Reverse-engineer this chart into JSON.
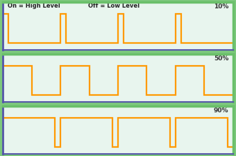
{
  "panels": [
    {
      "label": "10%",
      "duty": 0.1,
      "show_legend": true
    },
    {
      "label": "50%",
      "duty": 0.5,
      "show_legend": false
    },
    {
      "label": "90%",
      "duty": 0.9,
      "show_legend": false
    }
  ],
  "legend_on": "On = High Level",
  "legend_off": "Off = Low Level",
  "bg_color": "#e8f5ee",
  "fig_bg_color": "#7dc87d",
  "border_color_outer": "#6abf6a",
  "border_color_inner": "#5555aa",
  "line_color": "#ff9900",
  "line_width": 1.6,
  "num_cycles": 4,
  "high_level": 1.0,
  "low_level": 0.0,
  "label_fontsize": 6.5,
  "legend_fontsize": 6.0
}
